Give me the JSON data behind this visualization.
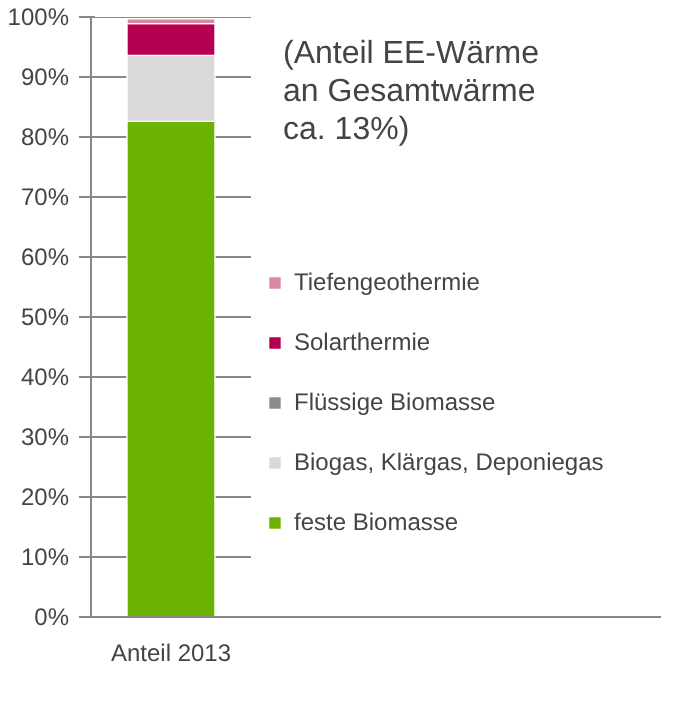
{
  "chart_data": {
    "type": "bar",
    "stacked": true,
    "categories": [
      "Anteil 2013"
    ],
    "series": [
      {
        "name": "feste Biomasse",
        "color": "#6bb300",
        "values": [
          82.6
        ]
      },
      {
        "name": "Biogas, Klärgas, Deponiegas",
        "color": "#d9d9d9",
        "values": [
          11
        ]
      },
      {
        "name": "Flüssige Biomasse",
        "color": "#8c8c8c",
        "values": [
          null
        ]
      },
      {
        "name": "Solarthermie",
        "color": "#b5004f",
        "values": [
          5.3
        ]
      },
      {
        "name": "Tiefengeothermie",
        "color": "#d98aa0",
        "values": [
          0.8
        ]
      }
    ],
    "ylim": [
      0,
      100
    ],
    "yticks": [
      {
        "value": 0,
        "label": "0%"
      },
      {
        "value": 10,
        "label": "10%"
      },
      {
        "value": 20,
        "label": "20%"
      },
      {
        "value": 30,
        "label": "30%"
      },
      {
        "value": 40,
        "label": "40%"
      },
      {
        "value": 50,
        "label": "50%"
      },
      {
        "value": 60,
        "label": "60%"
      },
      {
        "value": 70,
        "label": "70%"
      },
      {
        "value": 80,
        "label": "80%"
      },
      {
        "value": 90,
        "label": "90%"
      },
      {
        "value": 100,
        "label": "100%"
      }
    ],
    "grid": "y",
    "legend": "right",
    "annotations": [
      "(Anteil EE-Wärme an Gesamtwärme ca. 13%)"
    ]
  }
}
